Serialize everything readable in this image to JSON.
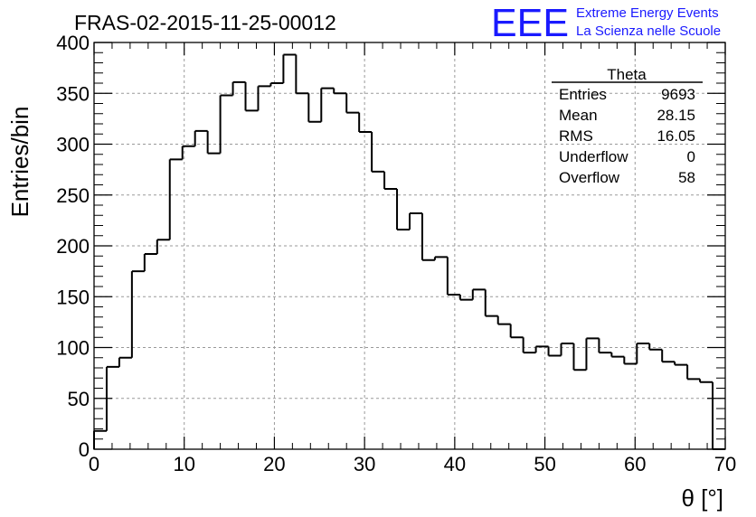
{
  "title": "FRAS-02-2015-11-25-00012",
  "logo": {
    "letters": "EEE",
    "line1": "Extreme Energy Events",
    "line2": "La Scienza nelle Scuole",
    "color": "#1a1aff"
  },
  "stats": {
    "header": "Theta",
    "rows": [
      {
        "label": "Entries",
        "value": "9693"
      },
      {
        "label": "Mean",
        "value": "28.15"
      },
      {
        "label": "RMS",
        "value": "16.05"
      },
      {
        "label": "Underflow",
        "value": "0"
      },
      {
        "label": "Overflow",
        "value": "58"
      }
    ]
  },
  "chart_data": {
    "type": "bar",
    "histogram_style": "step",
    "xlabel": "θ [°]",
    "ylabel": "Entries/bin",
    "xlim": [
      0,
      70
    ],
    "ylim": [
      0,
      400
    ],
    "x_ticks": [
      "0",
      "10",
      "20",
      "30",
      "40",
      "50",
      "60",
      "70"
    ],
    "y_ticks": [
      "0",
      "50",
      "100",
      "150",
      "200",
      "250",
      "300",
      "350",
      "400"
    ],
    "grid": true,
    "bin_width": 1.4,
    "bin_edges_start": 0,
    "values": [
      18,
      81,
      90,
      175,
      192,
      206,
      285,
      298,
      313,
      291,
      348,
      361,
      333,
      357,
      360,
      388,
      350,
      322,
      355,
      350,
      331,
      312,
      273,
      256,
      216,
      232,
      186,
      189,
      152,
      147,
      157,
      131,
      123,
      110,
      95,
      101,
      92,
      104,
      78,
      109,
      95,
      91,
      84,
      104,
      98,
      86,
      83,
      69,
      66,
      0
    ]
  }
}
